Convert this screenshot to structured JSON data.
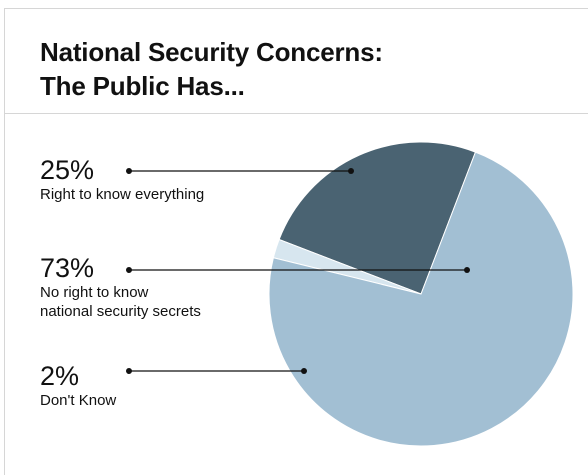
{
  "chart_data": {
    "type": "pie",
    "title_lines": [
      "National Security Concerns:",
      "The Public Has..."
    ],
    "slices": [
      {
        "label": "Right to know everything",
        "value": 25,
        "display": "25%",
        "color": "#4a6372"
      },
      {
        "label": "No right to know national security secrets",
        "value": 73,
        "display": "73%",
        "color": "#a2bfd3"
      },
      {
        "label": "Don't Know",
        "value": 2,
        "display": "2%",
        "color": "#d7e6ef"
      }
    ],
    "legend": [
      {
        "pct": "25%",
        "lines": [
          "Right to know everything"
        ]
      },
      {
        "pct": "73%",
        "lines": [
          "No right to know",
          "national security secrets"
        ]
      },
      {
        "pct": "2%",
        "lines": [
          "Don't Know"
        ]
      }
    ]
  }
}
